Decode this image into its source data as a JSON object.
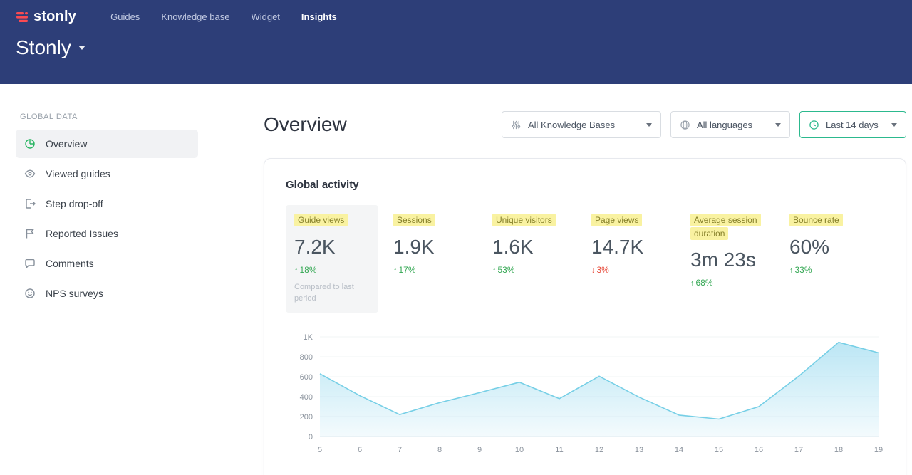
{
  "header": {
    "logo_text": "stonly",
    "workspace_name": "Stonly",
    "nav_items": [
      {
        "label": "Guides"
      },
      {
        "label": "Knowledge base"
      },
      {
        "label": "Widget"
      },
      {
        "label": "Insights"
      }
    ]
  },
  "sidebar": {
    "section_label": "GLOBAL DATA",
    "items": [
      {
        "label": "Overview",
        "icon": "pie-chart-icon"
      },
      {
        "label": "Viewed guides",
        "icon": "eye-icon"
      },
      {
        "label": "Step drop-off",
        "icon": "document-exit-icon"
      },
      {
        "label": "Reported Issues",
        "icon": "flag-icon"
      },
      {
        "label": "Comments",
        "icon": "comment-bubble-icon"
      },
      {
        "label": "NPS surveys",
        "icon": "smiley-icon"
      }
    ]
  },
  "main": {
    "title": "Overview",
    "filters": [
      {
        "label": "All Knowledge Bases",
        "icon": "sliders-icon"
      },
      {
        "label": "All languages",
        "icon": "globe-icon"
      },
      {
        "label": "Last 14 days",
        "icon": "clock-icon"
      }
    ],
    "card": {
      "title": "Global activity",
      "compared_note": "Compared to last period",
      "metrics": [
        {
          "label": "Guide views",
          "value": "7.2K",
          "arrow": "↑",
          "change": "18%",
          "direction": "up"
        },
        {
          "label": "Sessions",
          "value": "1.9K",
          "arrow": "↑",
          "change": "17%",
          "direction": "up"
        },
        {
          "label": "Unique visitors",
          "value": "1.6K",
          "arrow": "↑",
          "change": "53%",
          "direction": "up"
        },
        {
          "label": "Page views",
          "value": "14.7K",
          "arrow": "↓",
          "change": "3%",
          "direction": "down"
        },
        {
          "label": "Average session duration",
          "value": "3m 23s",
          "arrow": "↑",
          "change": "68%",
          "direction": "up"
        },
        {
          "label": "Bounce rate",
          "value": "60%",
          "arrow": "↑",
          "change": "33%",
          "direction": "up"
        }
      ]
    }
  },
  "chart_data": {
    "type": "area",
    "title": "Global activity",
    "x": [
      5,
      6,
      7,
      8,
      9,
      10,
      11,
      12,
      13,
      14,
      15,
      16,
      17,
      18,
      19
    ],
    "values": [
      630,
      410,
      220,
      340,
      440,
      545,
      380,
      605,
      395,
      215,
      175,
      300,
      605,
      945,
      840
    ],
    "xlabel": "",
    "ylabel": "",
    "ylim": [
      0,
      1000
    ],
    "yticks": [
      "0",
      "200",
      "400",
      "600",
      "800",
      "1K"
    ],
    "grid": true,
    "legend": false,
    "line_color": "#76cfe6",
    "fill_color": "#9fdcf0"
  },
  "colors": {
    "header_bg": "#2d3e78",
    "brand_red": "#fb4a52",
    "accent_green": "#2cb98e",
    "up_green": "#35a854",
    "down_red": "#e74c3c",
    "highlight_yellow": "#f9f2a1"
  }
}
